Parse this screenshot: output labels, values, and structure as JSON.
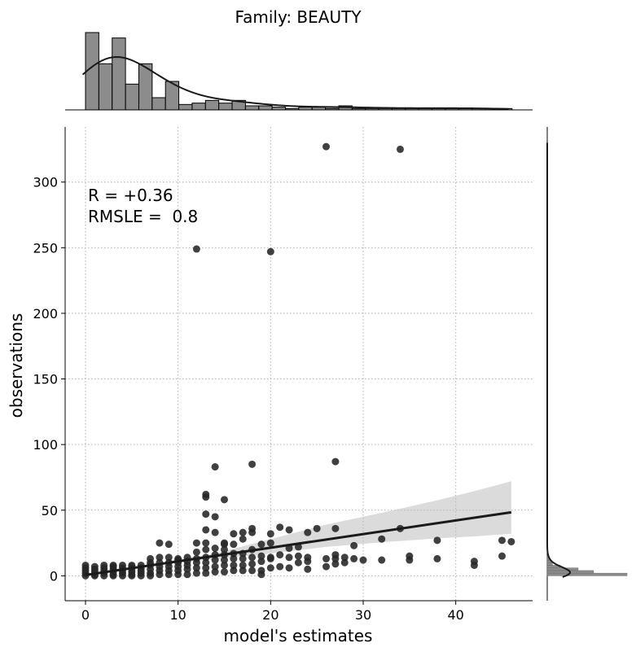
{
  "chart_data": {
    "type": "scatter",
    "title": "Family: BEAUTY",
    "xlabel": "model's estimates",
    "ylabel": "observations",
    "xlim": [
      -2.2,
      48.3
    ],
    "ylim": [
      -19,
      342
    ],
    "xticks": [
      0,
      10,
      20,
      30,
      40
    ],
    "yticks": [
      0,
      50,
      100,
      150,
      200,
      250,
      300
    ],
    "grid": true,
    "annotations": [
      "R = +0.36",
      "RMSLE =  0.8"
    ],
    "points": [
      [
        0,
        0
      ],
      [
        0,
        2
      ],
      [
        0,
        4
      ],
      [
        0,
        6
      ],
      [
        0,
        8
      ],
      [
        1,
        0
      ],
      [
        1,
        1
      ],
      [
        1,
        3
      ],
      [
        1,
        5
      ],
      [
        1,
        7
      ],
      [
        2,
        0
      ],
      [
        2,
        2
      ],
      [
        2,
        4
      ],
      [
        2,
        6
      ],
      [
        2,
        8
      ],
      [
        3,
        0
      ],
      [
        3,
        1
      ],
      [
        3,
        3
      ],
      [
        3,
        5
      ],
      [
        3,
        7
      ],
      [
        3,
        8
      ],
      [
        4,
        0
      ],
      [
        4,
        2
      ],
      [
        4,
        4
      ],
      [
        4,
        6
      ],
      [
        4,
        8
      ],
      [
        5,
        0
      ],
      [
        5,
        1
      ],
      [
        5,
        3
      ],
      [
        5,
        5
      ],
      [
        5,
        7
      ],
      [
        5,
        8
      ],
      [
        6,
        0
      ],
      [
        6,
        2
      ],
      [
        6,
        4
      ],
      [
        6,
        6
      ],
      [
        6,
        8
      ],
      [
        7,
        0
      ],
      [
        7,
        2
      ],
      [
        7,
        5
      ],
      [
        7,
        8
      ],
      [
        7,
        10
      ],
      [
        7,
        13
      ],
      [
        8,
        1
      ],
      [
        8,
        4
      ],
      [
        8,
        7
      ],
      [
        8,
        10
      ],
      [
        8,
        14
      ],
      [
        8,
        25
      ],
      [
        9,
        1
      ],
      [
        9,
        4
      ],
      [
        9,
        7
      ],
      [
        9,
        10
      ],
      [
        9,
        14
      ],
      [
        9,
        24
      ],
      [
        10,
        1
      ],
      [
        10,
        4
      ],
      [
        10,
        7
      ],
      [
        10,
        10
      ],
      [
        10,
        12
      ],
      [
        10,
        13
      ],
      [
        11,
        1
      ],
      [
        11,
        5
      ],
      [
        11,
        8
      ],
      [
        11,
        11
      ],
      [
        11,
        14
      ],
      [
        12,
        2
      ],
      [
        12,
        6
      ],
      [
        12,
        10
      ],
      [
        12,
        13
      ],
      [
        12,
        18
      ],
      [
        12,
        25
      ],
      [
        12,
        249
      ],
      [
        13,
        2
      ],
      [
        13,
        6
      ],
      [
        13,
        10
      ],
      [
        13,
        14
      ],
      [
        13,
        20
      ],
      [
        13,
        25
      ],
      [
        13,
        35
      ],
      [
        13,
        47
      ],
      [
        13,
        60
      ],
      [
        13,
        62
      ],
      [
        14,
        3
      ],
      [
        14,
        7
      ],
      [
        14,
        12
      ],
      [
        14,
        16
      ],
      [
        14,
        21
      ],
      [
        14,
        33
      ],
      [
        14,
        45
      ],
      [
        14,
        83
      ],
      [
        15,
        3
      ],
      [
        15,
        8
      ],
      [
        15,
        12
      ],
      [
        15,
        16
      ],
      [
        15,
        20
      ],
      [
        15,
        24
      ],
      [
        15,
        25
      ],
      [
        15,
        58
      ],
      [
        16,
        4
      ],
      [
        16,
        8
      ],
      [
        16,
        13
      ],
      [
        16,
        17
      ],
      [
        16,
        24
      ],
      [
        16,
        32
      ],
      [
        17,
        4
      ],
      [
        17,
        8
      ],
      [
        17,
        13
      ],
      [
        17,
        17
      ],
      [
        17,
        28
      ],
      [
        17,
        33
      ],
      [
        18,
        4
      ],
      [
        18,
        9
      ],
      [
        18,
        14
      ],
      [
        18,
        20
      ],
      [
        18,
        33
      ],
      [
        18,
        36
      ],
      [
        18,
        85
      ],
      [
        19,
        1
      ],
      [
        19,
        4
      ],
      [
        19,
        11
      ],
      [
        19,
        15
      ],
      [
        19,
        24
      ],
      [
        20,
        6
      ],
      [
        20,
        13
      ],
      [
        20,
        14
      ],
      [
        20,
        25
      ],
      [
        20,
        32
      ],
      [
        20,
        247
      ],
      [
        21,
        7
      ],
      [
        21,
        16
      ],
      [
        21,
        37
      ],
      [
        22,
        6
      ],
      [
        22,
        14
      ],
      [
        22,
        21
      ],
      [
        22,
        35
      ],
      [
        23,
        10
      ],
      [
        23,
        15
      ],
      [
        23,
        22
      ],
      [
        24,
        5
      ],
      [
        24,
        11
      ],
      [
        24,
        14
      ],
      [
        24,
        33
      ],
      [
        25,
        36
      ],
      [
        26,
        7
      ],
      [
        26,
        13
      ],
      [
        26,
        327
      ],
      [
        27,
        9
      ],
      [
        27,
        13
      ],
      [
        27,
        16
      ],
      [
        27,
        36
      ],
      [
        27,
        87
      ],
      [
        28,
        10
      ],
      [
        28,
        14
      ],
      [
        29,
        13
      ],
      [
        29,
        23
      ],
      [
        30,
        12
      ],
      [
        32,
        12
      ],
      [
        32,
        28
      ],
      [
        34,
        36
      ],
      [
        34,
        325
      ],
      [
        35,
        12
      ],
      [
        35,
        15
      ],
      [
        38,
        13
      ],
      [
        38,
        27
      ],
      [
        42,
        8
      ],
      [
        42,
        11
      ],
      [
        45,
        15
      ],
      [
        45,
        27
      ],
      [
        46,
        26
      ]
    ],
    "regression": {
      "x_start": 0,
      "x_end": 46,
      "y_start": 0.6,
      "y_end": 48.4
    },
    "confidence_band": {
      "x": [
        9,
        14,
        20,
        26,
        32,
        38,
        42,
        46
      ],
      "upper": [
        11.5,
        17,
        28,
        39,
        48,
        57.5,
        64.5,
        72
      ],
      "lower": [
        9.5,
        12.5,
        17,
        22,
        25.5,
        28.5,
        30,
        32
      ]
    },
    "top_histogram": {
      "bin_start": 0,
      "bin_width": 1.44,
      "counts": [
        57,
        34,
        53,
        19,
        34,
        9,
        21,
        4,
        5,
        7,
        5,
        7,
        3,
        3,
        2,
        1,
        2,
        2,
        1,
        3,
        1,
        1,
        1,
        1,
        1,
        1,
        1,
        1,
        1,
        1,
        1,
        1
      ]
    },
    "right_histogram": {
      "bin_start": 0,
      "bin_width": 2,
      "counts": [
        62,
        36,
        24,
        10,
        4,
        3,
        2,
        1
      ]
    }
  }
}
